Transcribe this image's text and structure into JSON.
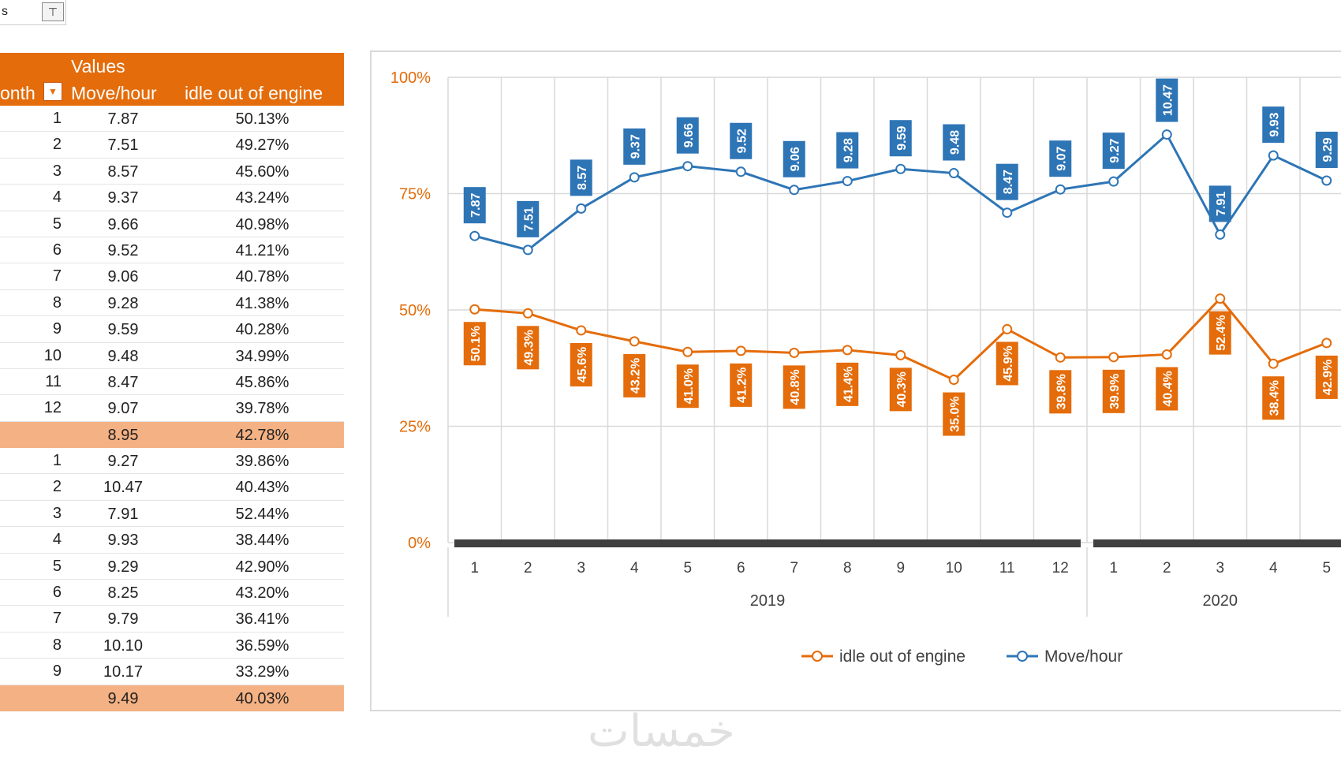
{
  "filter_cell": {
    "text": "s",
    "button_icon": "filter-funnel-icon"
  },
  "pivot": {
    "header": {
      "values_label": "Values",
      "month_label": "onth",
      "move_label": "Move/hour",
      "idle_label": "idle out of engine",
      "dropdown_icon": "dropdown-filter-icon"
    },
    "rows": [
      {
        "m": "1",
        "v": "7.87",
        "i": "50.13%"
      },
      {
        "m": "2",
        "v": "7.51",
        "i": "49.27%"
      },
      {
        "m": "3",
        "v": "8.57",
        "i": "45.60%"
      },
      {
        "m": "4",
        "v": "9.37",
        "i": "43.24%"
      },
      {
        "m": "5",
        "v": "9.66",
        "i": "40.98%"
      },
      {
        "m": "6",
        "v": "9.52",
        "i": "41.21%"
      },
      {
        "m": "7",
        "v": "9.06",
        "i": "40.78%"
      },
      {
        "m": "8",
        "v": "9.28",
        "i": "41.38%"
      },
      {
        "m": "9",
        "v": "9.59",
        "i": "40.28%"
      },
      {
        "m": "10",
        "v": "9.48",
        "i": "34.99%"
      },
      {
        "m": "11",
        "v": "8.47",
        "i": "45.86%"
      },
      {
        "m": "12",
        "v": "9.07",
        "i": "39.78%"
      },
      {
        "m": "",
        "v": "8.95",
        "i": "42.78%",
        "subtotal": true
      },
      {
        "m": "1",
        "v": "9.27",
        "i": "39.86%"
      },
      {
        "m": "2",
        "v": "10.47",
        "i": "40.43%"
      },
      {
        "m": "3",
        "v": "7.91",
        "i": "52.44%"
      },
      {
        "m": "4",
        "v": "9.93",
        "i": "38.44%"
      },
      {
        "m": "5",
        "v": "9.29",
        "i": "42.90%"
      },
      {
        "m": "6",
        "v": "8.25",
        "i": "43.20%"
      },
      {
        "m": "7",
        "v": "9.79",
        "i": "36.41%"
      },
      {
        "m": "8",
        "v": "10.10",
        "i": "36.59%"
      },
      {
        "m": "9",
        "v": "10.17",
        "i": "33.29%"
      },
      {
        "m": "",
        "v": "9.49",
        "i": "40.03%",
        "subtotal": true
      }
    ]
  },
  "chart_data": {
    "type": "line",
    "categories": [
      "1",
      "2",
      "3",
      "4",
      "5",
      "6",
      "7",
      "8",
      "9",
      "10",
      "11",
      "12",
      "1",
      "2",
      "3",
      "4",
      "5"
    ],
    "groups": [
      {
        "name": "2019",
        "count": 12
      },
      {
        "name": "2020",
        "count": 5
      }
    ],
    "y_axis": {
      "ticks": [
        "0%",
        "25%",
        "50%",
        "75%",
        "100%"
      ],
      "ylim": [
        0,
        100
      ]
    },
    "series": [
      {
        "name": "Move/hour",
        "color": "#2e75b6",
        "values": [
          65.9,
          62.9,
          71.8,
          78.5,
          80.9,
          79.7,
          75.8,
          77.7,
          80.3,
          79.4,
          70.9,
          75.9,
          77.6,
          87.7,
          66.2,
          83.2,
          77.8
        ],
        "labels": [
          "7.87",
          "7.51",
          "8.57",
          "9.37",
          "9.66",
          "9.52",
          "9.06",
          "9.28",
          "9.59",
          "9.48",
          "8.47",
          "9.07",
          "9.27",
          "10.47",
          "7.91",
          "9.93",
          "9.29"
        ]
      },
      {
        "name": "idle out of engine",
        "color": "#e46c0a",
        "values": [
          50.13,
          49.27,
          45.6,
          43.24,
          40.98,
          41.21,
          40.78,
          41.38,
          40.28,
          34.99,
          45.86,
          39.78,
          39.86,
          40.43,
          52.44,
          38.44,
          42.9
        ],
        "labels": [
          "50.1%",
          "49.3%",
          "45.6%",
          "43.2%",
          "41.0%",
          "41.2%",
          "40.8%",
          "41.4%",
          "40.3%",
          "35.0%",
          "45.9%",
          "39.8%",
          "39.9%",
          "40.4%",
          "52.4%",
          "38.4%",
          "42.9%"
        ]
      }
    ],
    "legend": [
      "idle out of engine",
      "Move/hour"
    ],
    "legend_position": "bottom",
    "grid": true
  },
  "watermark": "خمسات",
  "colors": {
    "orange": "#e46c0a",
    "subtotal": "#f4b183",
    "blue": "#2e75b6",
    "axis_bar": "#404040"
  }
}
